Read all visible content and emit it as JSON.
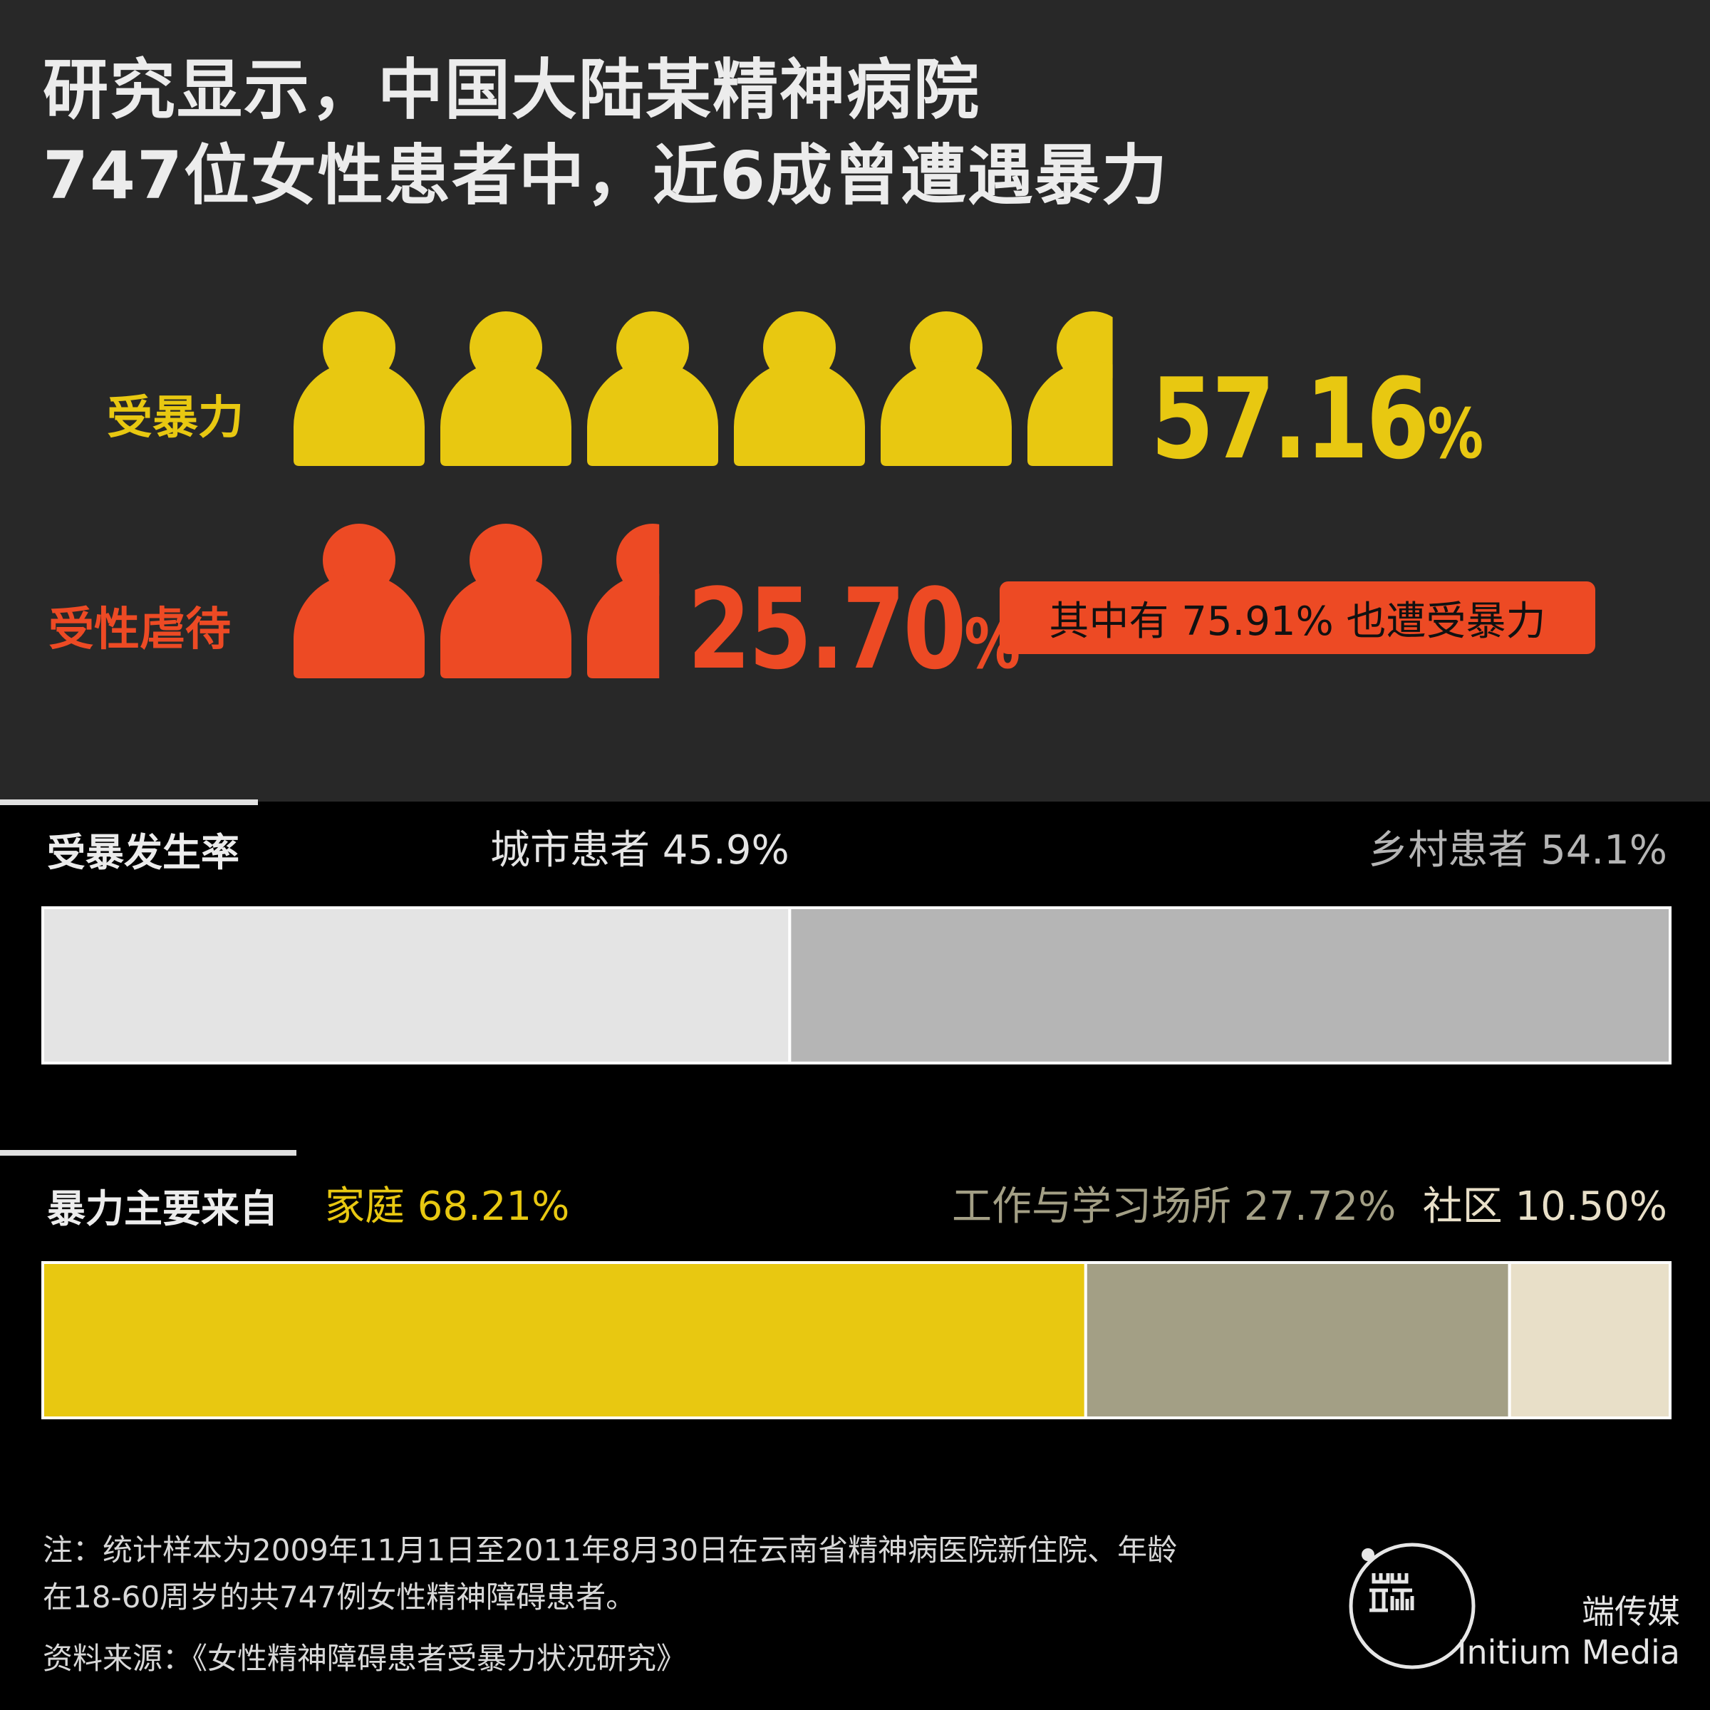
{
  "colors": {
    "panel": "#282828",
    "yellow": "#e8c811",
    "orange": "#ed4a24",
    "urban": "#e4e4e4",
    "rural": "#b5b5b5",
    "home": "#e8c811",
    "work": "#a39f85",
    "community": "#e8dfc8"
  },
  "header": {
    "title_line1": "研究显示，中国大陆某精神病院",
    "title_line2": "747位女性患者中，近6成曾遭遇暴力"
  },
  "rows": {
    "violence": {
      "label": "受暴力",
      "value_number": "57.16",
      "value_unit": "%",
      "icons_full": 5,
      "icons_partial": 0.65
    },
    "sexual_abuse": {
      "label": "受性虐待",
      "value_number": "25.70",
      "value_unit": "%",
      "icons_full": 2,
      "icons_partial": 0.55,
      "callout": "其中有 75.91% 也遭受暴力"
    }
  },
  "incidence": {
    "title": "受暴发生率",
    "urban_label": "城市患者 45.9%",
    "rural_label": "乡村患者 54.1%"
  },
  "sources": {
    "title": "暴力主要来自",
    "home_label": "家庭 68.21%",
    "work_label": "工作与学习场所 27.72%",
    "community_label": "社区 10.50%"
  },
  "footer": {
    "note_line1": "注：统计样本为2009年11月1日至2011年8月30日在云南省精神病医院新住院、年龄",
    "note_line2": "在18-60周岁的共747例女性精神障碍患者。",
    "source": "资料来源：《女性精神障碍患者受暴力状况研究》",
    "brand_cn": "端传媒",
    "brand_en": "Initium Media"
  },
  "chart_data": [
    {
      "type": "bar",
      "title": "受暴发生率",
      "categories": [
        "城市患者",
        "乡村患者"
      ],
      "values": [
        45.9,
        54.1
      ]
    },
    {
      "type": "bar",
      "title": "暴力主要来自",
      "categories": [
        "家庭",
        "工作与学习场所",
        "社区"
      ],
      "values": [
        68.21,
        27.72,
        10.5
      ]
    },
    {
      "type": "bar",
      "categories": [
        "受暴力",
        "受性虐待"
      ],
      "values": [
        57.16,
        25.7
      ]
    }
  ]
}
